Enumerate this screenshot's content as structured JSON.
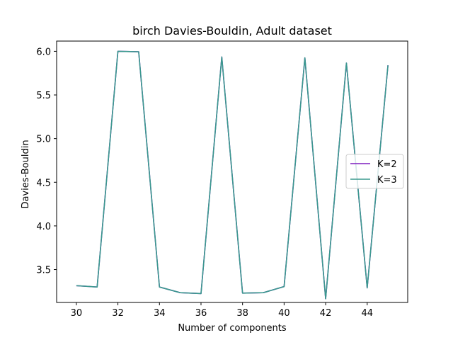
{
  "chart_data": {
    "type": "line",
    "title": "birch Davies-Bouldin, Adult dataset",
    "xlabel": "Number of components",
    "ylabel": "Davies-Bouldin",
    "x": [
      30,
      31,
      32,
      33,
      34,
      35,
      36,
      37,
      38,
      39,
      40,
      41,
      42,
      43,
      44,
      45
    ],
    "series": [
      {
        "name": "K=2",
        "color": "#7e1fbf",
        "values": [
          3.315,
          3.3,
          6.0,
          5.995,
          3.3,
          3.235,
          3.225,
          5.935,
          3.23,
          3.235,
          3.305,
          5.925,
          3.165,
          5.865,
          3.29,
          5.84
        ]
      },
      {
        "name": "K=3",
        "color": "#3a9a8e",
        "values": [
          3.315,
          3.3,
          6.0,
          5.995,
          3.3,
          3.235,
          3.225,
          5.935,
          3.23,
          3.235,
          3.305,
          5.925,
          3.165,
          5.865,
          3.29,
          5.84
        ]
      }
    ],
    "xticks": [
      30,
      32,
      34,
      36,
      38,
      40,
      42,
      44
    ],
    "yticks": [
      3.5,
      4.0,
      4.5,
      5.0,
      5.5,
      6.0
    ],
    "xlim": [
      29.05,
      45.95
    ],
    "ylim": [
      3.123,
      6.117
    ],
    "grid": false,
    "legend_position": "center-right"
  }
}
